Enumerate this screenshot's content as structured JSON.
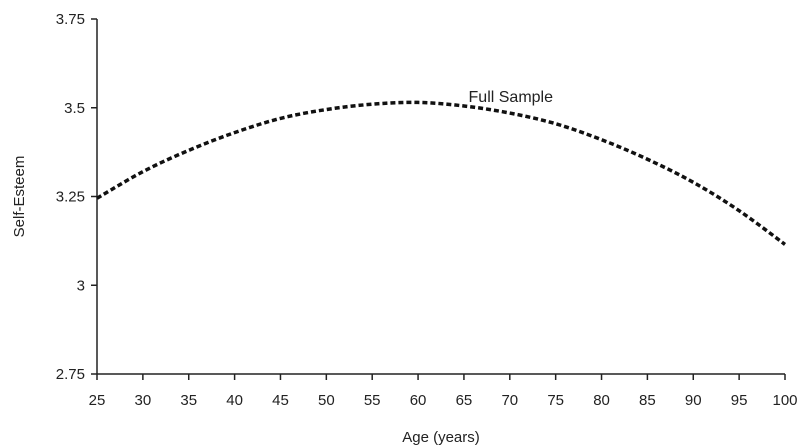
{
  "chart_data": {
    "type": "line",
    "title": "",
    "xlabel": "Age (years)",
    "ylabel": "Self-Esteem",
    "xlim": [
      25,
      100
    ],
    "ylim": [
      2.75,
      3.75
    ],
    "x_ticks": [
      25,
      30,
      35,
      40,
      45,
      50,
      55,
      60,
      65,
      70,
      75,
      80,
      85,
      90,
      95,
      100
    ],
    "x_tick_labels": [
      "25",
      "30",
      "35",
      "40",
      "45",
      "50",
      "55",
      "60",
      "65",
      "70",
      "75",
      "80",
      "85",
      "90",
      "95",
      "100"
    ],
    "y_ticks": [
      2.75,
      3.0,
      3.25,
      3.5,
      3.75
    ],
    "y_tick_labels": [
      "2.75",
      "3",
      "3.25",
      "3.5",
      "3.75"
    ],
    "grid": false,
    "legend": "none",
    "annotations": [
      {
        "text": "Full Sample",
        "x": 65.5,
        "y": 3.53
      }
    ],
    "series": [
      {
        "name": "Full Sample",
        "line_style": "dashed",
        "color": "#111111",
        "x": [
          25,
          30,
          35,
          40,
          45,
          50,
          55,
          60,
          65,
          70,
          75,
          80,
          85,
          90,
          95,
          100
        ],
        "y": [
          3.245,
          3.32,
          3.38,
          3.43,
          3.47,
          3.495,
          3.51,
          3.515,
          3.505,
          3.485,
          3.455,
          3.41,
          3.355,
          3.29,
          3.21,
          3.115
        ]
      }
    ]
  }
}
